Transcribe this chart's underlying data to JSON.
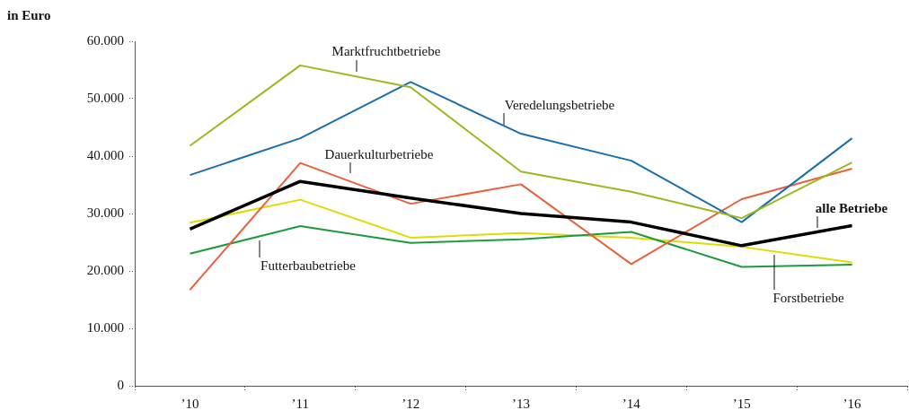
{
  "chart_data": {
    "type": "line",
    "title": "in Euro",
    "categories": [
      "’10",
      "’11",
      "’12",
      "’13",
      "’14",
      "’15",
      "’16"
    ],
    "ylim": [
      0,
      60000
    ],
    "yticks": [
      {
        "value": 0,
        "label": "0"
      },
      {
        "value": 10000,
        "label": "10.000"
      },
      {
        "value": 20000,
        "label": "20.000"
      },
      {
        "value": 30000,
        "label": "30.000"
      },
      {
        "value": 40000,
        "label": "40.000"
      },
      {
        "value": 50000,
        "label": "50.000"
      },
      {
        "value": 60000,
        "label": "60.000"
      }
    ],
    "grid": false,
    "legend": false,
    "marker": "none",
    "line_style": "solid",
    "series": [
      {
        "name": "Marktfruchtbetriebe",
        "color": "#9ab91f",
        "values": [
          41800,
          55800,
          52000,
          37300,
          33800,
          29200,
          38900
        ]
      },
      {
        "name": "Veredelungsbetriebe",
        "color": "#1a6fab",
        "values": [
          36700,
          43100,
          52900,
          43900,
          39200,
          28500,
          43100
        ]
      },
      {
        "name": "Dauerkulturbetriebe",
        "color": "#e8603c",
        "values": [
          16700,
          38800,
          31700,
          35100,
          21200,
          32500,
          37800
        ]
      },
      {
        "name": "alle Betriebe",
        "color": "#000000",
        "values": [
          27300,
          35600,
          32700,
          30000,
          28500,
          24400,
          27900
        ]
      },
      {
        "name": "Futterbaubetriebe",
        "color": "#1e9a3c",
        "values": [
          23000,
          27800,
          24900,
          25500,
          26800,
          20700,
          21100
        ]
      },
      {
        "name": "Forstbetriebe",
        "color": "#e0dc00",
        "values": [
          28400,
          32400,
          25800,
          26600,
          25800,
          24200,
          21500
        ]
      }
    ]
  }
}
